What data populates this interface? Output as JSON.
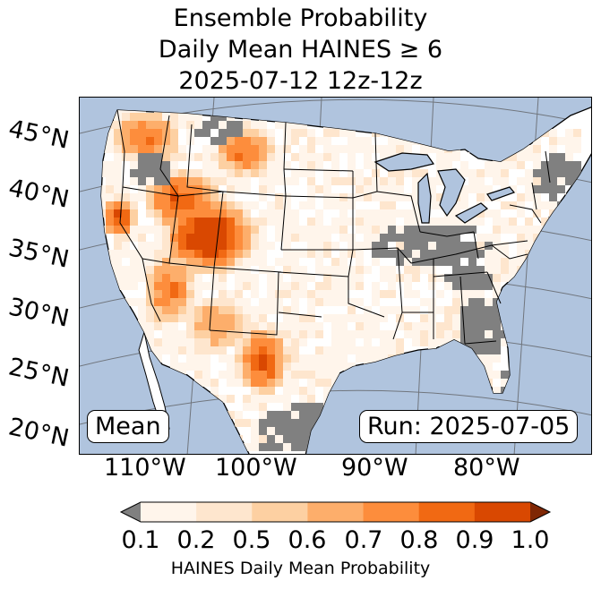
{
  "title": {
    "line1": "Ensemble Probability",
    "line2": "Daily Mean HAINES ≥ 6",
    "line3": "2025-07-12 12z-12z"
  },
  "map": {
    "lat_labels": [
      "45°N",
      "40°N",
      "35°N",
      "30°N",
      "25°N",
      "20°N"
    ],
    "lon_labels": [
      "110°W",
      "100°W",
      "90°W",
      "80°W"
    ],
    "mean_label": "Mean",
    "run_label": "Run: 2025-07-05",
    "colors": {
      "water": "#b0c4de",
      "land": "#ffffff",
      "missing": "#808080",
      "borders": "#000000",
      "graticule": "#555555"
    }
  },
  "colorbar": {
    "ticks": [
      "0.1",
      "0.2",
      "0.5",
      "0.6",
      "0.7",
      "0.8",
      "0.9",
      "1.0"
    ],
    "colors": [
      "#fff5eb",
      "#fee6ce",
      "#fdd0a2",
      "#fdae6b",
      "#fd8d3c",
      "#f16913",
      "#d94801"
    ],
    "under_color": "#808080",
    "over_color": "#7f2704",
    "label": "HAINES Daily Mean Probability"
  }
}
